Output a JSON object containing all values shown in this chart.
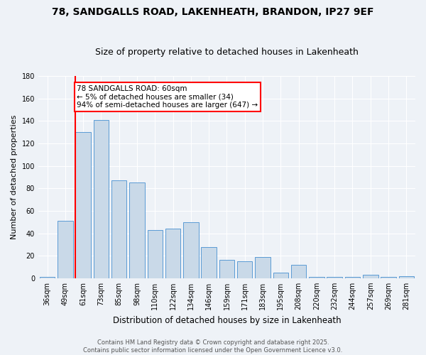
{
  "title1": "78, SANDGALLS ROAD, LAKENHEATH, BRANDON, IP27 9EF",
  "title2": "Size of property relative to detached houses in Lakenheath",
  "xlabel": "Distribution of detached houses by size in Lakenheath",
  "ylabel": "Number of detached properties",
  "categories": [
    "36sqm",
    "49sqm",
    "61sqm",
    "73sqm",
    "85sqm",
    "98sqm",
    "110sqm",
    "122sqm",
    "134sqm",
    "146sqm",
    "159sqm",
    "171sqm",
    "183sqm",
    "195sqm",
    "208sqm",
    "220sqm",
    "232sqm",
    "244sqm",
    "257sqm",
    "269sqm",
    "281sqm"
  ],
  "values": [
    1,
    51,
    130,
    141,
    87,
    85,
    43,
    44,
    50,
    28,
    16,
    15,
    19,
    5,
    12,
    1,
    1,
    1,
    3,
    1,
    2
  ],
  "bar_color": "#c9d9e8",
  "bar_edge_color": "#5b9bd5",
  "highlight_color": "#ff0000",
  "ylim": [
    0,
    180
  ],
  "yticks": [
    0,
    20,
    40,
    60,
    80,
    100,
    120,
    140,
    160,
    180
  ],
  "annotation_text": "78 SANDGALLS ROAD: 60sqm\n← 5% of detached houses are smaller (34)\n94% of semi-detached houses are larger (647) →",
  "annotation_box_color": "#ffffff",
  "annotation_border_color": "#ff0000",
  "property_bar_index": 2,
  "footer_line1": "Contains HM Land Registry data © Crown copyright and database right 2025.",
  "footer_line2": "Contains public sector information licensed under the Open Government Licence v3.0.",
  "bg_color": "#eef2f7",
  "grid_color": "#ffffff",
  "title1_fontsize": 10,
  "title2_fontsize": 9,
  "tick_fontsize": 7,
  "ylabel_fontsize": 8,
  "xlabel_fontsize": 8.5,
  "annotation_fontsize": 7.5,
  "footer_fontsize": 6
}
